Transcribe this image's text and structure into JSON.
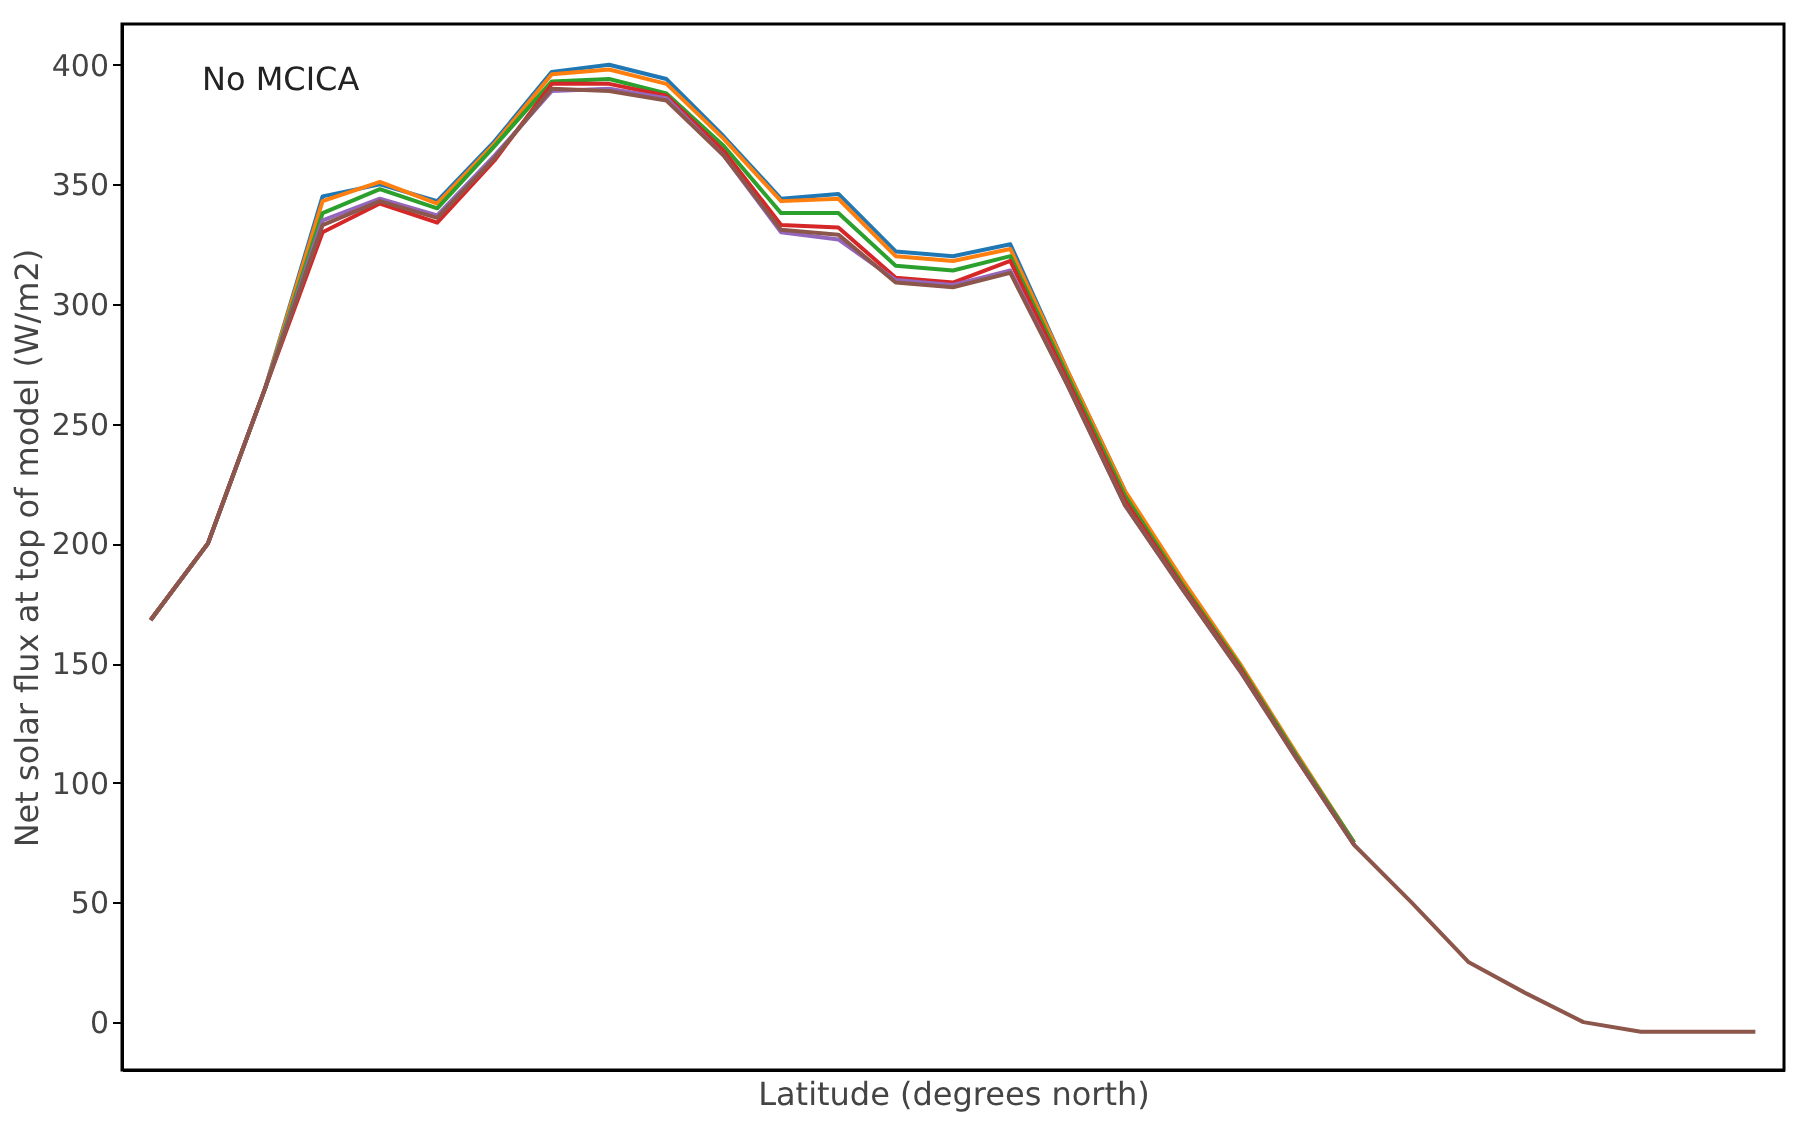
{
  "chart_data": {
    "type": "line",
    "xlabel": "Latitude (degrees north)",
    "ylabel": "Net solar flux at top of model (W/m2)",
    "annotations": [
      "No MCICA"
    ],
    "categories": [
      null,
      null,
      null,
      null,
      null,
      null,
      null,
      null,
      null,
      null,
      null,
      null,
      null,
      null,
      null,
      null,
      null,
      null,
      null,
      null,
      null,
      null,
      null,
      null,
      null,
      null,
      null,
      null,
      null
    ],
    "series": [
      {
        "color": "#1f77b4",
        "values": [
          168,
          200,
          265,
          345,
          350,
          343,
          368,
          397,
          400,
          394,
          370,
          344,
          346,
          322,
          320,
          325,
          272,
          222,
          null,
          null,
          null,
          null,
          null,
          null,
          null,
          null,
          null,
          null,
          null
        ]
      },
      {
        "color": "#ff7f0e",
        "values": [
          168,
          200,
          265,
          343,
          351,
          342,
          367,
          396,
          398,
          392,
          369,
          343,
          344,
          320,
          318,
          323,
          272,
          222,
          185,
          150,
          112,
          75,
          null,
          null,
          null,
          null,
          null,
          null,
          null
        ]
      },
      {
        "color": "#2ca02c",
        "values": [
          168,
          200,
          265,
          338,
          348,
          340,
          366,
          393,
          394,
          388,
          366,
          338,
          338,
          316,
          314,
          320,
          270,
          220,
          183,
          149,
          111,
          75,
          null,
          null,
          null,
          null,
          null,
          null,
          null
        ]
      },
      {
        "color": "#d62728",
        "values": [
          168,
          200,
          265,
          330,
          342,
          334,
          360,
          392,
          392,
          387,
          364,
          333,
          332,
          311,
          309,
          318,
          268,
          218,
          182,
          148,
          110,
          74,
          null,
          null,
          null,
          null,
          null,
          null,
          null
        ]
      },
      {
        "color": "#9467bd",
        "values": [
          168,
          200,
          265,
          335,
          344,
          337,
          362,
          389,
          390,
          386,
          362,
          330,
          327,
          310,
          308,
          314,
          266,
          216,
          181,
          147,
          110,
          74,
          null,
          null,
          null,
          null,
          null,
          null,
          null
        ]
      },
      {
        "color": "#8c564b",
        "values": [
          168,
          200,
          265,
          333,
          343,
          336,
          361,
          390,
          389,
          385,
          362,
          331,
          329,
          309,
          307,
          313,
          266,
          216,
          181,
          147,
          110,
          74,
          50,
          25,
          12,
          0,
          -4,
          -4,
          -4
        ]
      }
    ],
    "ylim": [
      -20,
      417
    ],
    "yticks": [
      0,
      50,
      100,
      150,
      200,
      250,
      300,
      350,
      400
    ],
    "tick_labels": "y"
  }
}
